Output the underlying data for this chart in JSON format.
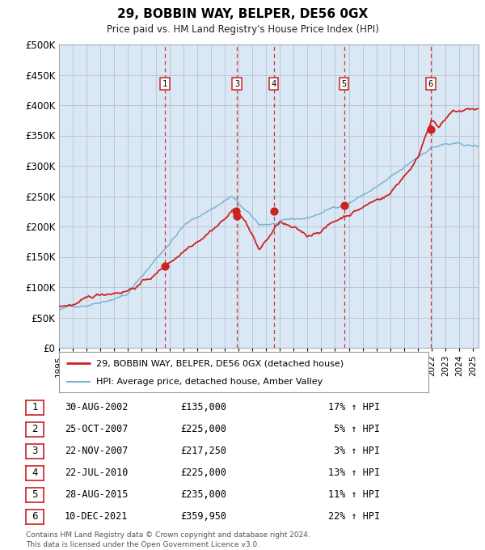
{
  "title": "29, BOBBIN WAY, BELPER, DE56 0GX",
  "subtitle": "Price paid vs. HM Land Registry's House Price Index (HPI)",
  "legend_line1": "29, BOBBIN WAY, BELPER, DE56 0GX (detached house)",
  "legend_line2": "HPI: Average price, detached house, Amber Valley",
  "footer_line1": "Contains HM Land Registry data © Crown copyright and database right 2024.",
  "footer_line2": "This data is licensed under the Open Government Licence v3.0.",
  "sales": [
    {
      "label": "1",
      "date": "2002-08-30",
      "x": 2002.66,
      "price": 135000
    },
    {
      "label": "2",
      "date": "2007-10-25",
      "x": 2007.82,
      "price": 225000
    },
    {
      "label": "3",
      "date": "2007-11-22",
      "x": 2007.89,
      "price": 217250
    },
    {
      "label": "4",
      "date": "2010-07-22",
      "x": 2010.56,
      "price": 225000
    },
    {
      "label": "5",
      "date": "2015-08-28",
      "x": 2015.66,
      "price": 235000
    },
    {
      "label": "6",
      "date": "2021-12-10",
      "x": 2021.94,
      "price": 359950
    }
  ],
  "table_rows": [
    {
      "num": "1",
      "date": "30-AUG-2002",
      "price": "£135,000",
      "hpi": "17% ↑ HPI"
    },
    {
      "num": "2",
      "date": "25-OCT-2007",
      "price": "£225,000",
      "hpi": "5% ↑ HPI"
    },
    {
      "num": "3",
      "date": "22-NOV-2007",
      "price": "£217,250",
      "hpi": "3% ↑ HPI"
    },
    {
      "num": "4",
      "date": "22-JUL-2010",
      "price": "£225,000",
      "hpi": "13% ↑ HPI"
    },
    {
      "num": "5",
      "date": "28-AUG-2015",
      "price": "£235,000",
      "hpi": "11% ↑ HPI"
    },
    {
      "num": "6",
      "date": "10-DEC-2021",
      "price": "£359,950",
      "hpi": "22% ↑ HPI"
    }
  ],
  "vline_labels_shown": [
    "1",
    "3",
    "4",
    "5",
    "6"
  ],
  "vline_x_shown": [
    2002.66,
    2007.89,
    2010.56,
    2015.66,
    2021.94
  ],
  "hpi_color": "#7ab3d4",
  "price_color": "#cc2222",
  "vline_color": "#cc2222",
  "bg_color": "#dae8f5",
  "grid_color": "#b0b8c8",
  "ylim": [
    0,
    500000
  ],
  "xlim_start": 1995.0,
  "xlim_end": 2025.4,
  "yticks": [
    0,
    50000,
    100000,
    150000,
    200000,
    250000,
    300000,
    350000,
    400000,
    450000,
    500000
  ],
  "ytick_labels": [
    "£0",
    "£50K",
    "£100K",
    "£150K",
    "£200K",
    "£250K",
    "£300K",
    "£350K",
    "£400K",
    "£450K",
    "£500K"
  ]
}
